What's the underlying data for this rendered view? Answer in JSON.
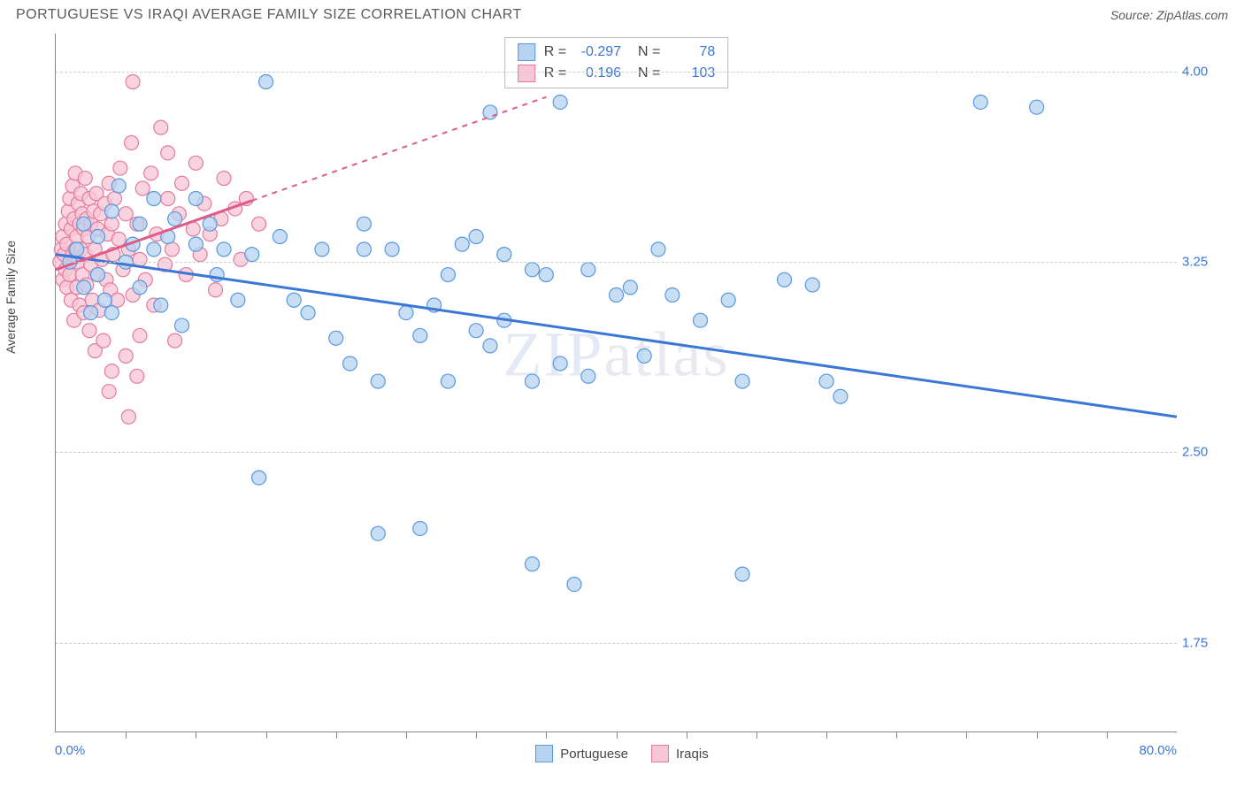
{
  "title": "PORTUGUESE VS IRAQI AVERAGE FAMILY SIZE CORRELATION CHART",
  "source": "Source: ZipAtlas.com",
  "ylabel": "Average Family Size",
  "watermark": "ZIPatlas",
  "chart": {
    "type": "scatter",
    "xlim": [
      0,
      80
    ],
    "ylim": [
      1.4,
      4.15
    ],
    "xticks_minor": [
      5,
      10,
      15,
      20,
      25,
      30,
      35,
      40,
      45,
      50,
      55,
      60,
      65,
      70,
      75
    ],
    "yticks": [
      1.75,
      2.5,
      3.25,
      4.0
    ],
    "ytick_labels": [
      "1.75",
      "2.50",
      "3.25",
      "4.00"
    ],
    "xmin_label": "0.0%",
    "xmax_label": "80.0%",
    "grid_color": "#cfcfcf",
    "axis_color": "#888888",
    "background_color": "#ffffff",
    "series": [
      {
        "name": "Portuguese",
        "marker_fill": "#b6d3f2",
        "marker_stroke": "#5a98dd",
        "marker_opacity": 0.75,
        "marker_radius": 8,
        "line_color": "#3a77d6",
        "line_width": 3,
        "line_dash_after_x": null,
        "trend": {
          "x1": 0,
          "y1": 3.28,
          "x2": 80,
          "y2": 2.64
        },
        "R": "-0.297",
        "N": "78",
        "points": [
          [
            1,
            3.25
          ],
          [
            1.5,
            3.3
          ],
          [
            2,
            3.15
          ],
          [
            2,
            3.4
          ],
          [
            2.5,
            3.05
          ],
          [
            3,
            3.2
          ],
          [
            3,
            3.35
          ],
          [
            3.5,
            3.1
          ],
          [
            4,
            3.45
          ],
          [
            4,
            3.05
          ],
          [
            4.5,
            3.55
          ],
          [
            5,
            3.25
          ],
          [
            5.5,
            3.32
          ],
          [
            6,
            3.4
          ],
          [
            6,
            3.15
          ],
          [
            7,
            3.5
          ],
          [
            7,
            3.3
          ],
          [
            7.5,
            3.08
          ],
          [
            8,
            3.35
          ],
          [
            8.5,
            3.42
          ],
          [
            9,
            3.0
          ],
          [
            10,
            3.32
          ],
          [
            10,
            3.5
          ],
          [
            11,
            3.4
          ],
          [
            11.5,
            3.2
          ],
          [
            12,
            3.3
          ],
          [
            13,
            3.1
          ],
          [
            14,
            3.28
          ],
          [
            14.5,
            2.4
          ],
          [
            15,
            3.96
          ],
          [
            16,
            3.35
          ],
          [
            17,
            3.1
          ],
          [
            18,
            3.05
          ],
          [
            19,
            3.3
          ],
          [
            20,
            2.95
          ],
          [
            21,
            2.85
          ],
          [
            22,
            3.4
          ],
          [
            22,
            3.3
          ],
          [
            23,
            2.78
          ],
          [
            23,
            2.18
          ],
          [
            24,
            3.3
          ],
          [
            25,
            3.05
          ],
          [
            26,
            2.2
          ],
          [
            26,
            2.96
          ],
          [
            27,
            3.08
          ],
          [
            28,
            2.78
          ],
          [
            28,
            3.2
          ],
          [
            29,
            3.32
          ],
          [
            30,
            3.35
          ],
          [
            30,
            2.98
          ],
          [
            31,
            2.92
          ],
          [
            31,
            3.84
          ],
          [
            32,
            3.02
          ],
          [
            32,
            3.28
          ],
          [
            34,
            3.22
          ],
          [
            34,
            2.78
          ],
          [
            34,
            2.06
          ],
          [
            35,
            3.2
          ],
          [
            36,
            3.88
          ],
          [
            36,
            2.85
          ],
          [
            37,
            1.98
          ],
          [
            38,
            3.22
          ],
          [
            38,
            2.8
          ],
          [
            40,
            3.12
          ],
          [
            41,
            3.15
          ],
          [
            42,
            2.88
          ],
          [
            43,
            3.3
          ],
          [
            44,
            3.12
          ],
          [
            46,
            3.02
          ],
          [
            48,
            3.1
          ],
          [
            49,
            2.78
          ],
          [
            49,
            2.02
          ],
          [
            52,
            3.18
          ],
          [
            54,
            3.16
          ],
          [
            55,
            2.78
          ],
          [
            56,
            2.72
          ],
          [
            66,
            3.88
          ],
          [
            70,
            3.86
          ]
        ]
      },
      {
        "name": "Iraqis",
        "marker_fill": "#f7c7d5",
        "marker_stroke": "#e37ba0",
        "marker_opacity": 0.78,
        "marker_radius": 8,
        "line_color": "#e05b8a",
        "line_width": 3,
        "line_dash_after_x": 14,
        "trend": {
          "x1": 0,
          "y1": 3.22,
          "x2": 35,
          "y2": 3.9
        },
        "R": "0.196",
        "N": "103",
        "points": [
          [
            0.3,
            3.25
          ],
          [
            0.4,
            3.3
          ],
          [
            0.5,
            3.18
          ],
          [
            0.5,
            3.35
          ],
          [
            0.6,
            3.28
          ],
          [
            0.7,
            3.22
          ],
          [
            0.7,
            3.4
          ],
          [
            0.8,
            3.15
          ],
          [
            0.8,
            3.32
          ],
          [
            0.9,
            3.45
          ],
          [
            1.0,
            3.2
          ],
          [
            1.0,
            3.5
          ],
          [
            1.1,
            3.1
          ],
          [
            1.1,
            3.38
          ],
          [
            1.2,
            3.28
          ],
          [
            1.2,
            3.55
          ],
          [
            1.3,
            3.02
          ],
          [
            1.3,
            3.42
          ],
          [
            1.4,
            3.3
          ],
          [
            1.4,
            3.6
          ],
          [
            1.5,
            3.15
          ],
          [
            1.5,
            3.35
          ],
          [
            1.6,
            3.48
          ],
          [
            1.6,
            3.25
          ],
          [
            1.7,
            3.08
          ],
          [
            1.7,
            3.4
          ],
          [
            1.8,
            3.3
          ],
          [
            1.8,
            3.52
          ],
          [
            1.9,
            3.2
          ],
          [
            1.9,
            3.44
          ],
          [
            2.0,
            3.05
          ],
          [
            2.0,
            3.38
          ],
          [
            2.1,
            3.28
          ],
          [
            2.1,
            3.58
          ],
          [
            2.2,
            3.16
          ],
          [
            2.2,
            3.42
          ],
          [
            2.3,
            3.35
          ],
          [
            2.4,
            2.98
          ],
          [
            2.4,
            3.5
          ],
          [
            2.5,
            3.24
          ],
          [
            2.5,
            3.4
          ],
          [
            2.6,
            3.1
          ],
          [
            2.7,
            3.45
          ],
          [
            2.8,
            3.3
          ],
          [
            2.8,
            2.9
          ],
          [
            2.9,
            3.52
          ],
          [
            3.0,
            3.2
          ],
          [
            3.0,
            3.38
          ],
          [
            3.1,
            3.06
          ],
          [
            3.2,
            3.44
          ],
          [
            3.3,
            3.26
          ],
          [
            3.4,
            2.94
          ],
          [
            3.5,
            3.48
          ],
          [
            3.6,
            3.18
          ],
          [
            3.7,
            3.36
          ],
          [
            3.8,
            3.56
          ],
          [
            3.9,
            3.14
          ],
          [
            4.0,
            3.4
          ],
          [
            4.0,
            2.82
          ],
          [
            4.1,
            3.28
          ],
          [
            4.2,
            3.5
          ],
          [
            4.4,
            3.1
          ],
          [
            4.5,
            3.34
          ],
          [
            4.6,
            3.62
          ],
          [
            4.8,
            3.22
          ],
          [
            5.0,
            3.44
          ],
          [
            5.0,
            2.88
          ],
          [
            5.2,
            3.3
          ],
          [
            5.4,
            3.72
          ],
          [
            5.5,
            3.12
          ],
          [
            5.8,
            3.4
          ],
          [
            6.0,
            3.26
          ],
          [
            6.0,
            2.96
          ],
          [
            6.2,
            3.54
          ],
          [
            6.4,
            3.18
          ],
          [
            6.8,
            3.6
          ],
          [
            7.0,
            3.08
          ],
          [
            7.2,
            3.36
          ],
          [
            7.5,
            3.78
          ],
          [
            7.8,
            3.24
          ],
          [
            8.0,
            3.5
          ],
          [
            8.0,
            3.68
          ],
          [
            8.3,
            3.3
          ],
          [
            8.5,
            2.94
          ],
          [
            8.8,
            3.44
          ],
          [
            9.0,
            3.56
          ],
          [
            9.3,
            3.2
          ],
          [
            5.5,
            3.96
          ],
          [
            9.8,
            3.38
          ],
          [
            10.0,
            3.64
          ],
          [
            10.3,
            3.28
          ],
          [
            10.6,
            3.48
          ],
          [
            11.0,
            3.36
          ],
          [
            11.4,
            3.14
          ],
          [
            11.8,
            3.42
          ],
          [
            12.0,
            3.58
          ],
          [
            5.2,
            2.64
          ],
          [
            12.8,
            3.46
          ],
          [
            13.2,
            3.26
          ],
          [
            13.6,
            3.5
          ],
          [
            5.8,
            2.8
          ],
          [
            14.5,
            3.4
          ],
          [
            3.8,
            2.74
          ]
        ]
      }
    ]
  },
  "colors": {
    "text_muted": "#5a5a5a",
    "tick_label": "#3a77d6",
    "legend_text": "#444444"
  }
}
